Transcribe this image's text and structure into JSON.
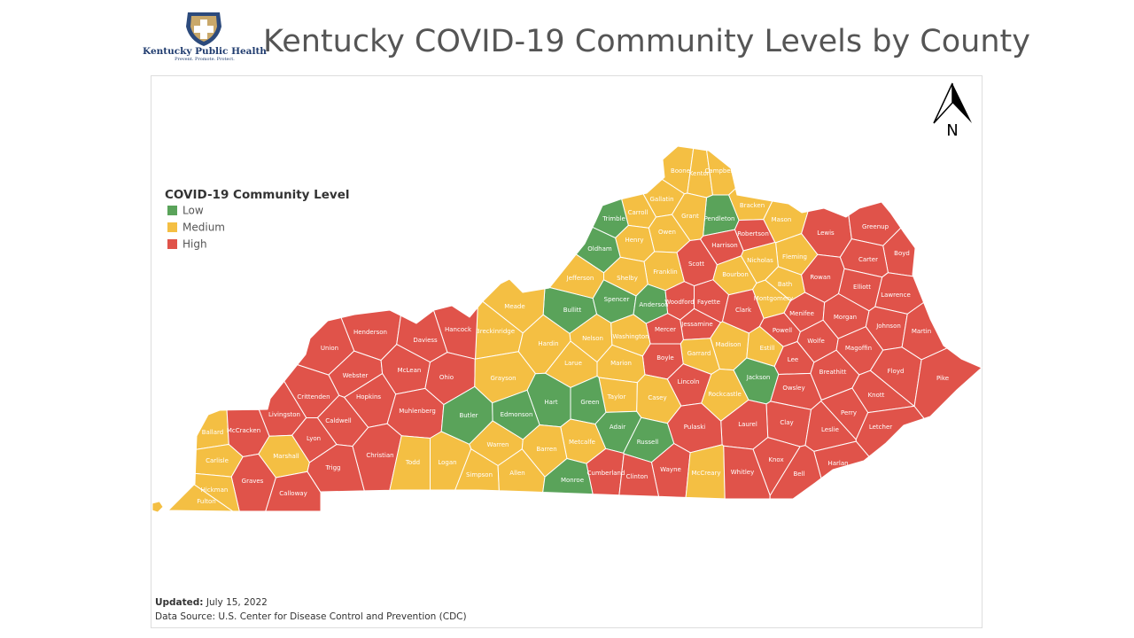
{
  "header": {
    "title": "Kentucky COVID-19 Community Levels by County",
    "logo": {
      "name": "Kentucky Public Health",
      "tagline": "Prevent. Promote. Protect."
    }
  },
  "legend": {
    "title": "COVID-19 Community Level",
    "levels": [
      {
        "label": "Low",
        "color": "#5aa35a"
      },
      {
        "label": "Medium",
        "color": "#f4bf43"
      },
      {
        "label": "High",
        "color": "#e0534a"
      }
    ]
  },
  "compass": "N",
  "counties": [
    {
      "name": "Boone",
      "level": 1
    },
    {
      "name": "Kenton",
      "level": 1
    },
    {
      "name": "Campbell",
      "level": 1
    },
    {
      "name": "Gallatin",
      "level": 1
    },
    {
      "name": "Carroll",
      "level": 1
    },
    {
      "name": "Trimble",
      "level": 0
    },
    {
      "name": "Pendleton",
      "level": 0
    },
    {
      "name": "Grant",
      "level": 1
    },
    {
      "name": "Bracken",
      "level": 1
    },
    {
      "name": "Mason",
      "level": 1
    },
    {
      "name": "Lewis",
      "level": 2
    },
    {
      "name": "Greenup",
      "level": 2
    },
    {
      "name": "Robertson",
      "level": 2
    },
    {
      "name": "Harrison",
      "level": 2
    },
    {
      "name": "Owen",
      "level": 1
    },
    {
      "name": "Henry",
      "level": 1
    },
    {
      "name": "Oldham",
      "level": 0
    },
    {
      "name": "Boyd",
      "level": 2
    },
    {
      "name": "Carter",
      "level": 2
    },
    {
      "name": "Fleming",
      "level": 1
    },
    {
      "name": "Nicholas",
      "level": 1
    },
    {
      "name": "Scott",
      "level": 2
    },
    {
      "name": "Franklin",
      "level": 1
    },
    {
      "name": "Shelby",
      "level": 1
    },
    {
      "name": "Jefferson",
      "level": 1
    },
    {
      "name": "Bourbon",
      "level": 1
    },
    {
      "name": "Bath",
      "level": 1
    },
    {
      "name": "Rowan",
      "level": 2
    },
    {
      "name": "Elliott",
      "level": 2
    },
    {
      "name": "Lawrence",
      "level": 2
    },
    {
      "name": "Spencer",
      "level": 0
    },
    {
      "name": "Anderson",
      "level": 0
    },
    {
      "name": "Bullitt",
      "level": 0
    },
    {
      "name": "Woodford",
      "level": 2
    },
    {
      "name": "Fayette",
      "level": 2
    },
    {
      "name": "Montgomery",
      "level": 1
    },
    {
      "name": "Clark",
      "level": 2
    },
    {
      "name": "Menifee",
      "level": 2
    },
    {
      "name": "Morgan",
      "level": 2
    },
    {
      "name": "Meade",
      "level": 1
    },
    {
      "name": "Breckinridge",
      "level": 1
    },
    {
      "name": "Hancock",
      "level": 2
    },
    {
      "name": "Henderson",
      "level": 2
    },
    {
      "name": "Daviess",
      "level": 2
    },
    {
      "name": "Union",
      "level": 2
    },
    {
      "name": "Jessamine",
      "level": 2
    },
    {
      "name": "Mercer",
      "level": 2
    },
    {
      "name": "Nelson",
      "level": 1
    },
    {
      "name": "Washington",
      "level": 1
    },
    {
      "name": "Hardin",
      "level": 1
    },
    {
      "name": "Powell",
      "level": 2
    },
    {
      "name": "Johnson",
      "level": 2
    },
    {
      "name": "Martin",
      "level": 2
    },
    {
      "name": "Wolfe",
      "level": 2
    },
    {
      "name": "Magoffin",
      "level": 2
    },
    {
      "name": "Madison",
      "level": 1
    },
    {
      "name": "Estill",
      "level": 1
    },
    {
      "name": "Garrard",
      "level": 1
    },
    {
      "name": "Boyle",
      "level": 2
    },
    {
      "name": "Marion",
      "level": 1
    },
    {
      "name": "Larue",
      "level": 1
    },
    {
      "name": "Lee",
      "level": 2
    },
    {
      "name": "Webster",
      "level": 2
    },
    {
      "name": "McLean",
      "level": 2
    },
    {
      "name": "Ohio",
      "level": 2
    },
    {
      "name": "Floyd",
      "level": 2
    },
    {
      "name": "Breathitt",
      "level": 2
    },
    {
      "name": "Pike",
      "level": 2
    },
    {
      "name": "Lincoln",
      "level": 2
    },
    {
      "name": "Jackson",
      "level": 0
    },
    {
      "name": "Grayson",
      "level": 1
    },
    {
      "name": "Owsley",
      "level": 2
    },
    {
      "name": "Crittenden",
      "level": 2
    },
    {
      "name": "Hopkins",
      "level": 2
    },
    {
      "name": "Taylor",
      "level": 1
    },
    {
      "name": "Casey",
      "level": 1
    },
    {
      "name": "Rockcastle",
      "level": 1
    },
    {
      "name": "Knott",
      "level": 2
    },
    {
      "name": "Hart",
      "level": 0
    },
    {
      "name": "Green",
      "level": 0
    },
    {
      "name": "Perry",
      "level": 2
    },
    {
      "name": "Livingston",
      "level": 2
    },
    {
      "name": "Caldwell",
      "level": 2
    },
    {
      "name": "Muhlenberg",
      "level": 2
    },
    {
      "name": "Butler",
      "level": 0
    },
    {
      "name": "Edmonson",
      "level": 0
    },
    {
      "name": "Clay",
      "level": 2
    },
    {
      "name": "Laurel",
      "level": 2
    },
    {
      "name": "Ballard",
      "level": 1
    },
    {
      "name": "McCracken",
      "level": 2
    },
    {
      "name": "Adair",
      "level": 0
    },
    {
      "name": "Pulaski",
      "level": 2
    },
    {
      "name": "Letcher",
      "level": 2
    },
    {
      "name": "Leslie",
      "level": 2
    },
    {
      "name": "Lyon",
      "level": 2
    },
    {
      "name": "Russell",
      "level": 0
    },
    {
      "name": "Warren",
      "level": 1
    },
    {
      "name": "Metcalfe",
      "level": 1
    },
    {
      "name": "Barren",
      "level": 1
    },
    {
      "name": "Carlisle",
      "level": 1
    },
    {
      "name": "Marshall",
      "level": 1
    },
    {
      "name": "Christian",
      "level": 2
    },
    {
      "name": "Trigg",
      "level": 2
    },
    {
      "name": "Todd",
      "level": 1
    },
    {
      "name": "Logan",
      "level": 1
    },
    {
      "name": "Harlan",
      "level": 2
    },
    {
      "name": "Knox",
      "level": 2
    },
    {
      "name": "Simpson",
      "level": 1
    },
    {
      "name": "Allen",
      "level": 1
    },
    {
      "name": "Cumberland",
      "level": 2
    },
    {
      "name": "Wayne",
      "level": 2
    },
    {
      "name": "McCreary",
      "level": 1
    },
    {
      "name": "Whitley",
      "level": 2
    },
    {
      "name": "Clinton",
      "level": 2
    },
    {
      "name": "Bell",
      "level": 2
    },
    {
      "name": "Monroe",
      "level": 0
    },
    {
      "name": "Graves",
      "level": 2
    },
    {
      "name": "Hickman",
      "level": 1
    },
    {
      "name": "Calloway",
      "level": 2
    },
    {
      "name": "Fulton",
      "level": 1
    }
  ],
  "footer": {
    "updated_label": "Updated:",
    "updated": "July 15, 2022",
    "source": "Data Source: U.S. Center for Disease Control and Prevention (CDC)"
  }
}
